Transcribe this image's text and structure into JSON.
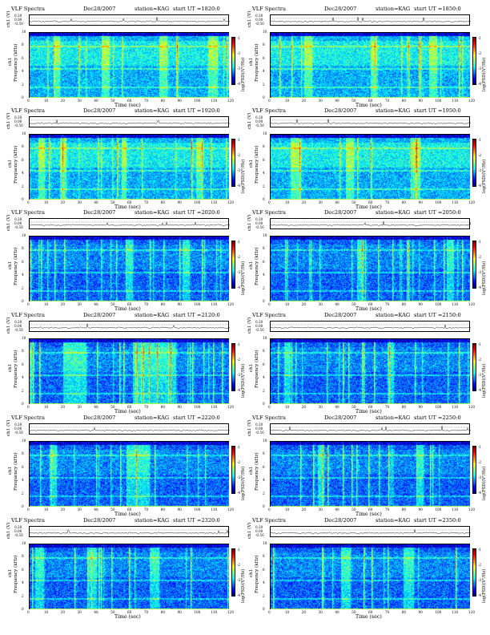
{
  "chart_data": [
    {
      "type": "heatmap",
      "title": "VLF Spectra",
      "date": "Dec28/2007",
      "station": "station=KAG",
      "start": "start UT =1820:0",
      "seed": 11,
      "quiet": [],
      "busy": [
        [
          14,
          18
        ],
        [
          43,
          48
        ],
        [
          78,
          82
        ],
        [
          108,
          113
        ]
      ]
    },
    {
      "type": "heatmap",
      "title": "VLF Spectra",
      "date": "Dec28/2007",
      "station": "station=KAG",
      "start": "start UT =1850:0",
      "seed": 23,
      "quiet": [],
      "busy": [
        [
          20,
          25
        ],
        [
          60,
          64
        ],
        [
          95,
          100
        ]
      ]
    },
    {
      "type": "heatmap",
      "title": "VLF Spectra",
      "date": "Dec28/2007",
      "station": "station=KAG",
      "start": "start UT =1920:0",
      "seed": 37,
      "quiet": [],
      "busy": [
        [
          5,
          9
        ],
        [
          18,
          22
        ],
        [
          55,
          58
        ],
        [
          100,
          104
        ]
      ]
    },
    {
      "type": "heatmap",
      "title": "VLF Spectra",
      "date": "Dec28/2007",
      "station": "station=KAG",
      "start": "start UT =1950:0",
      "seed": 41,
      "quiet": [],
      "busy": [
        [
          12,
          18
        ],
        [
          45,
          50
        ],
        [
          85,
          90
        ]
      ]
    },
    {
      "type": "heatmap",
      "title": "VLF Spectra",
      "date": "Dec28/2007",
      "station": "station=KAG",
      "start": "start UT =2020:0",
      "seed": 53,
      "quiet": [
        [
          0,
          120
        ]
      ],
      "busy": [
        [
          58,
          62
        ],
        [
          92,
          96
        ]
      ]
    },
    {
      "type": "heatmap",
      "title": "VLF Spectra",
      "date": "Dec28/2007",
      "station": "station=KAG",
      "start": "start UT =2050:0",
      "seed": 67,
      "quiet": [
        [
          0,
          120
        ]
      ],
      "busy": [
        [
          52,
          56
        ],
        [
          106,
          110
        ]
      ]
    },
    {
      "type": "heatmap",
      "title": "VLF Spectra",
      "date": "Dec28/2007",
      "station": "station=KAG",
      "start": "start UT =2120:0",
      "seed": 71,
      "quiet": [
        [
          0,
          120
        ]
      ],
      "busy": [
        [
          20,
          34
        ],
        [
          62,
          88
        ]
      ]
    },
    {
      "type": "heatmap",
      "title": "VLF Spectra",
      "date": "Dec28/2007",
      "station": "station=KAG",
      "start": "start UT =2150:0",
      "seed": 83,
      "quiet": [
        [
          0,
          120
        ]
      ],
      "busy": [
        [
          8,
          12
        ],
        [
          70,
          74
        ]
      ]
    },
    {
      "type": "heatmap",
      "title": "VLF Spectra",
      "date": "Dec28/2007",
      "station": "station=KAG",
      "start": "start UT =2220:0",
      "seed": 97,
      "quiet": [
        [
          0,
          120
        ]
      ],
      "busy": [
        [
          58,
          72
        ],
        [
          12,
          16
        ]
      ]
    },
    {
      "type": "heatmap",
      "title": "VLF Spectra",
      "date": "Dec28/2007",
      "station": "station=KAG",
      "start": "start UT =2250:0",
      "seed": 101,
      "quiet": [
        [
          0,
          120
        ]
      ],
      "busy": [
        [
          28,
          32
        ],
        [
          88,
          92
        ]
      ]
    },
    {
      "type": "heatmap",
      "title": "VLF Spectra",
      "date": "Dec28/2007",
      "station": "station=KAG",
      "start": "start UT =2320:0",
      "seed": 113,
      "quiet": [
        [
          0,
          120
        ]
      ],
      "busy": [
        [
          3,
          8
        ],
        [
          35,
          40
        ],
        [
          72,
          78
        ]
      ]
    },
    {
      "type": "heatmap",
      "title": "VLF Spectra",
      "date": "Dec28/2007",
      "station": "station=KAG",
      "start": "start UT =2350:0",
      "seed": 127,
      "quiet": [
        [
          0,
          120
        ]
      ],
      "busy": [
        [
          42,
          48
        ],
        [
          80,
          86
        ]
      ]
    }
  ],
  "labels": {
    "trace_ylabel": "ch1 (V)",
    "spec_ylabel_ch": "ch1",
    "spec_ylabel": "Frequency (kHz)",
    "xlabel": "Time (sec)",
    "cbar_label": "log(PSD)(V²/Hz)",
    "trace_ticks": [
      "0.20",
      "0.00",
      "-0.50"
    ],
    "freq_ticks": [
      "10",
      "8",
      "6",
      "4",
      "2",
      "0"
    ],
    "time_ticks": [
      "0",
      "10",
      "20",
      "30",
      "40",
      "50",
      "60",
      "70",
      "80",
      "90",
      "100",
      "110",
      "120"
    ],
    "cbar_ticks": [
      "-1",
      "-2",
      "-3",
      "-4"
    ]
  },
  "axes": {
    "time_range": [
      0,
      120
    ],
    "freq_range_khz": [
      0,
      10
    ],
    "trace_range_v": [
      -0.5,
      0.2
    ]
  },
  "colormap": [
    "#00007f",
    "#0000ff",
    "#007fff",
    "#00ffff",
    "#7fff7f",
    "#ffff00",
    "#ff7f00",
    "#ff0000",
    "#7f0000"
  ]
}
